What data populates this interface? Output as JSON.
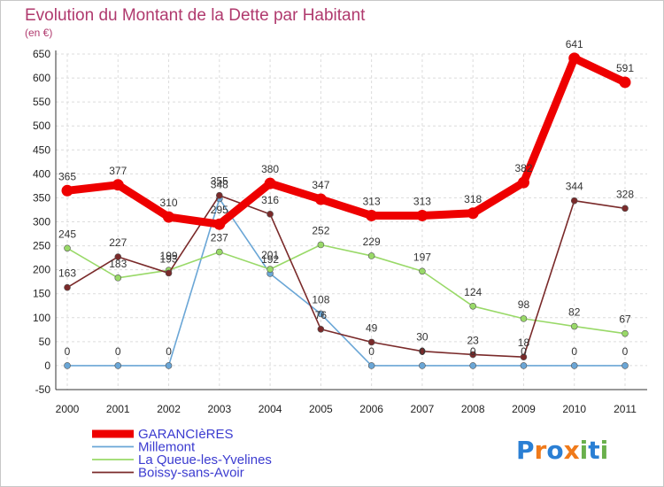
{
  "chart_data": {
    "type": "line",
    "title": "Evolution du Montant de la Dette par Habitant",
    "subtitle": "(en €)",
    "categories": [
      "2000",
      "2001",
      "2002",
      "2003",
      "2004",
      "2005",
      "2006",
      "2007",
      "2008",
      "2009",
      "2010",
      "2011"
    ],
    "ylim": [
      -50,
      650
    ],
    "yticks": [
      -50,
      0,
      50,
      100,
      150,
      200,
      250,
      300,
      350,
      400,
      450,
      500,
      550,
      600,
      650
    ],
    "grid": true,
    "legend_position": "bottom-left",
    "series": [
      {
        "name": "GARANCIèRES",
        "color": "#ee0000",
        "values": [
          365,
          377,
          310,
          295,
          380,
          347,
          313,
          313,
          318,
          382,
          641,
          591
        ],
        "labels": [
          "365",
          "377",
          "310",
          "295",
          "380",
          "347",
          "313",
          "313",
          "318",
          "382",
          "641",
          "591"
        ]
      },
      {
        "name": "Millemont",
        "color": "#6aa6d6",
        "values": [
          0,
          0,
          0,
          348,
          192,
          108,
          0,
          0,
          0,
          0,
          0,
          0
        ],
        "labels": [
          "0",
          "0",
          "0",
          "348",
          "192",
          "108",
          "0",
          "0",
          "0",
          "0",
          "0",
          "0"
        ]
      },
      {
        "name": "La Queue-les-Yvelines",
        "color": "#99d968",
        "values": [
          245,
          183,
          199,
          237,
          201,
          252,
          229,
          197,
          124,
          98,
          82,
          67
        ],
        "labels": [
          "245",
          "183",
          "199",
          "237",
          "201",
          "252",
          "229",
          "197",
          "124",
          "98",
          "82",
          "67"
        ]
      },
      {
        "name": "Boissy-sans-Avoir",
        "color": "#7a2a2a",
        "values": [
          163,
          227,
          193,
          355,
          316,
          76,
          49,
          30,
          23,
          18,
          344,
          328
        ],
        "labels": [
          "163",
          "227",
          "193",
          "355",
          "316",
          "76",
          "49",
          "30",
          "23",
          "18",
          "344",
          "328"
        ]
      }
    ]
  },
  "logo": {
    "text": "Proxiti",
    "letters": [
      "P",
      "r",
      "o",
      "x",
      "i",
      "t",
      "i"
    ],
    "colors": [
      "#2a7fd4",
      "#f07a1a",
      "#2a7fd4",
      "#f07a1a",
      "#6ab04c",
      "#2a7fd4",
      "#6ab04c"
    ]
  }
}
